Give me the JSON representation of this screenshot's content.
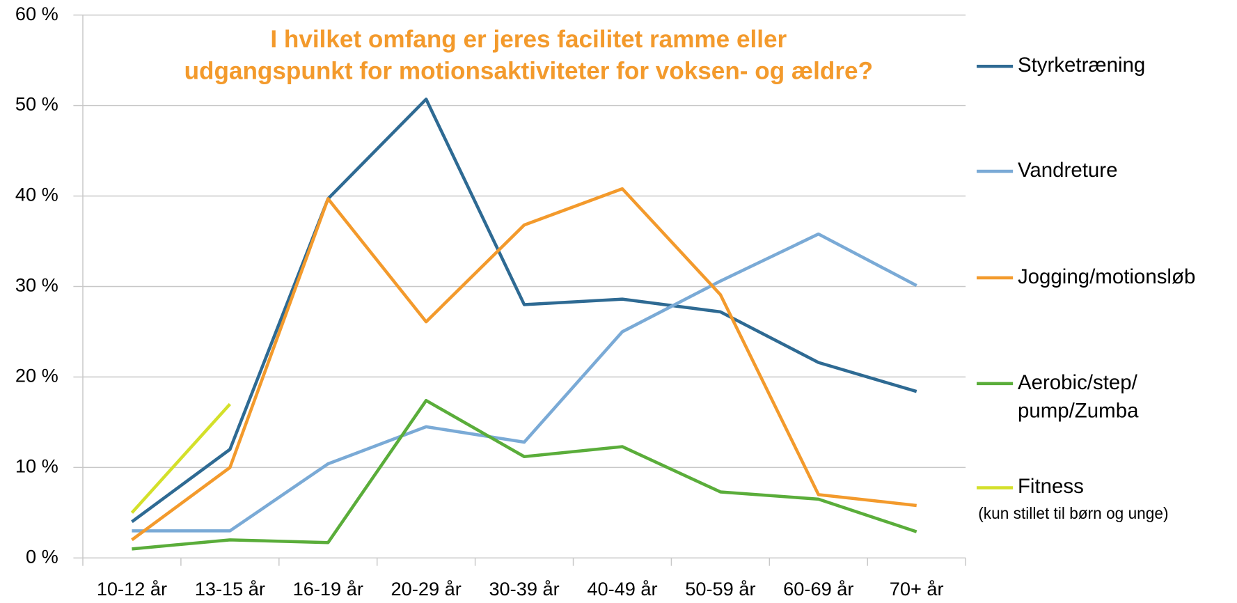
{
  "chart_data": {
    "type": "line",
    "title": "I hvilket omfang er jeres facilitet ramme eller\nudgangspunkt for motionsaktiviteter for voksen- og ældre?",
    "title_color": "#f39a2c",
    "categories": [
      "10-12 år",
      "13-15 år",
      "16-19 år",
      "20-29 år",
      "30-39 år",
      "40-49 år",
      "50-59 år",
      "60-69 år",
      "70+ år"
    ],
    "series": [
      {
        "name": "Styrketræning",
        "color": "#2e6a93",
        "values": [
          4,
          12,
          39.7,
          50.7,
          28,
          28.6,
          27.2,
          21.6,
          18.4
        ]
      },
      {
        "name": "Vandreture",
        "color": "#7aaad6",
        "values": [
          3,
          3,
          10.4,
          14.5,
          12.8,
          25,
          30.6,
          35.8,
          30.1
        ]
      },
      {
        "name": "Jogging/motionsløb",
        "color": "#f39a2c",
        "values": [
          2,
          10,
          39.7,
          26.1,
          36.8,
          40.8,
          29.1,
          7,
          5.8
        ]
      },
      {
        "name": "Aerobic/step/\npump/Zumba",
        "color": "#5aad3a",
        "values": [
          1,
          2,
          1.7,
          17.4,
          11.2,
          12.3,
          7.3,
          6.5,
          2.9
        ]
      },
      {
        "name": "Fitness",
        "color": "#d4e02a",
        "values": [
          5,
          17,
          null,
          null,
          null,
          null,
          null,
          null,
          null
        ]
      }
    ],
    "legend_note": "(kun stillet til børn og unge)",
    "ylim": [
      0,
      60
    ],
    "yticks": [
      {
        "value": 0,
        "label": "0 %"
      },
      {
        "value": 10,
        "label": "10 %"
      },
      {
        "value": 20,
        "label": "20 %"
      },
      {
        "value": 30,
        "label": "30 %"
      },
      {
        "value": 40,
        "label": "40 %"
      },
      {
        "value": 50,
        "label": "50 %"
      },
      {
        "value": 60,
        "label": "60 %"
      }
    ],
    "grid": true,
    "legend": "right"
  }
}
